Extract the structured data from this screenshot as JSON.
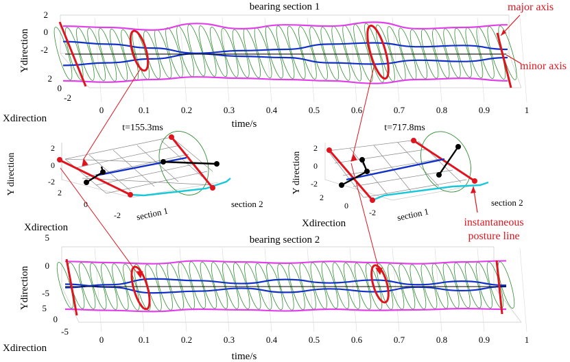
{
  "chart_data": [
    {
      "type": "line",
      "title": "bearing section 1",
      "xlabel": "time/s",
      "ylabel": "Ydirection",
      "zlabel": "Xdirection",
      "x_ticks": [
        "0",
        "0.1",
        "0.2",
        "0.3",
        "0.4",
        "0.5",
        "0.6",
        "0.7",
        "0.8",
        "0.9",
        "1"
      ],
      "y_ticks": [
        "2",
        "0",
        "-2"
      ],
      "z_ticks": [
        "2",
        "0",
        "-2"
      ],
      "xlim": [
        0,
        1
      ],
      "series": [
        {
          "name": "outer envelope upper",
          "color": "#e040e8",
          "x": [
            0,
            0.1,
            0.2,
            0.3,
            0.4,
            0.5,
            0.6,
            0.7,
            0.8,
            0.9,
            1
          ],
          "y": [
            2.1,
            2.0,
            1.8,
            2.3,
            1.9,
            2.2,
            2.1,
            2.4,
            1.9,
            2.0,
            2.2
          ]
        },
        {
          "name": "outer envelope lower",
          "color": "#e040e8",
          "x": [
            0,
            0.1,
            0.2,
            0.3,
            0.4,
            0.5,
            0.6,
            0.7,
            0.8,
            0.9,
            1
          ],
          "y": [
            -2.1,
            -2.2,
            -2.0,
            -1.8,
            -1.9,
            -2.0,
            -2.1,
            -2.3,
            -2.0,
            -1.9,
            -2.1
          ]
        },
        {
          "name": "inner trajectory",
          "color": "#1030c8",
          "x": [
            0,
            0.1,
            0.2,
            0.3,
            0.4,
            0.5,
            0.6,
            0.7,
            0.8,
            0.9,
            1
          ],
          "y": [
            0.6,
            0.4,
            0.1,
            -0.3,
            -0.1,
            0.0,
            0.4,
            0.5,
            0.2,
            0.3,
            0.0
          ]
        }
      ],
      "annotations": [
        "major axis",
        "minor axis"
      ]
    },
    {
      "type": "line",
      "title": "t=155.3ms",
      "xlabel": "section 2",
      "ylabel": "Y direction",
      "zlabel": "Xdirection",
      "extra_label": "section 1",
      "y_ticks": [
        "2",
        "0",
        "-2"
      ],
      "z_ticks": [
        "2",
        "0",
        "-2"
      ]
    },
    {
      "type": "line",
      "title": "t=717.8ms",
      "xlabel": "section 2",
      "ylabel": "Y direction",
      "zlabel": "Xdirection",
      "extra_label": "section 1",
      "y_ticks": [
        "2",
        "0",
        "-2"
      ],
      "z_ticks": [
        "2",
        "0",
        "-2"
      ],
      "annotations": [
        "instantaneous",
        "posture line"
      ]
    },
    {
      "type": "line",
      "title": "bearing section 2",
      "xlabel": "time/s",
      "ylabel": "Ydirection",
      "zlabel": "Xdirection",
      "x_ticks": [
        "0",
        "0.1",
        "0.2",
        "0.3",
        "0.4",
        "0.5",
        "0.6",
        "0.7",
        "0.8",
        "0.9",
        "1"
      ],
      "y_ticks": [
        "5",
        "0",
        "-5"
      ],
      "z_ticks": [
        "5",
        "0",
        "-5"
      ],
      "xlim": [
        0,
        1
      ],
      "series": [
        {
          "name": "outer envelope upper",
          "color": "#e040e8",
          "x": [
            0,
            0.1,
            0.2,
            0.3,
            0.4,
            0.5,
            0.6,
            0.7,
            0.8,
            0.9,
            1
          ],
          "y": [
            4.2,
            4.0,
            3.8,
            4.3,
            4.1,
            3.9,
            4.2,
            4.0,
            3.8,
            4.1,
            4.3
          ]
        },
        {
          "name": "outer envelope lower",
          "color": "#e040e8",
          "x": [
            0,
            0.1,
            0.2,
            0.3,
            0.4,
            0.5,
            0.6,
            0.7,
            0.8,
            0.9,
            1
          ],
          "y": [
            -4.0,
            -4.2,
            -4.4,
            -4.0,
            -4.1,
            -4.3,
            -4.0,
            -4.2,
            -4.1,
            -3.9,
            -4.0
          ]
        },
        {
          "name": "inner trajectory",
          "color": "#1030c8",
          "x": [
            0,
            0.1,
            0.2,
            0.3,
            0.4,
            0.5,
            0.6,
            0.7,
            0.8,
            0.9,
            1
          ],
          "y": [
            -1.0,
            -0.5,
            0.5,
            0.2,
            -0.3,
            0.4,
            -0.2,
            0.3,
            -0.5,
            0.1,
            -0.6
          ]
        }
      ]
    }
  ],
  "colors": {
    "envelope": "#e040e8",
    "trajectory": "#1030c8",
    "mesh": "#2e8b2e",
    "accent": "#e0141e",
    "section2_marker": "#19c8d8",
    "posture": "#000000"
  }
}
